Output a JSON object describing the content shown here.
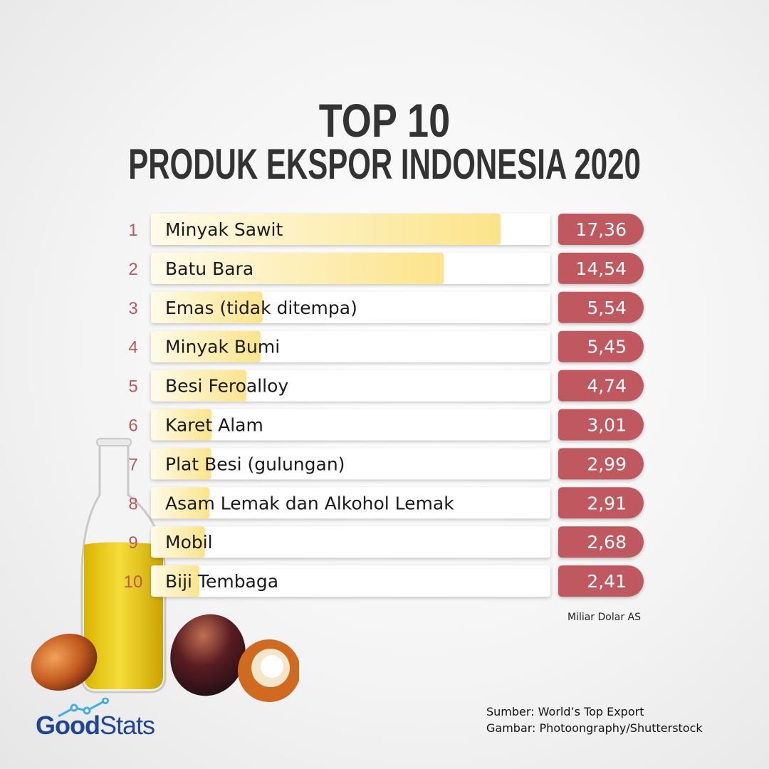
{
  "header": {
    "title_line1": "TOP 10",
    "title_line2": "PRODUK EKSPOR INDONESIA 2020"
  },
  "chart_data": {
    "type": "bar",
    "orientation": "horizontal",
    "title": "TOP 10 PRODUK EKSPOR INDONESIA 2020",
    "unit": "Miliar Dolar AS",
    "ranks": [
      "1",
      "2",
      "3",
      "4",
      "5",
      "6",
      "7",
      "8",
      "9",
      "10"
    ],
    "categories": [
      "Minyak Sawit",
      "Batu Bara",
      "Emas (tidak ditempa)",
      "Minyak Bumi",
      "Besi Feroalloy",
      "Karet Alam",
      "Plat Besi (gulungan)",
      "Asam Lemak dan Alkohol Lemak",
      "Mobil",
      "Biji Tembaga"
    ],
    "values": [
      17.36,
      14.54,
      5.54,
      5.45,
      4.74,
      3.01,
      2.99,
      2.91,
      2.68,
      2.41
    ],
    "value_labels": [
      "17,36",
      "14,54",
      "5,54",
      "5,45",
      "4,74",
      "3,01",
      "2,99",
      "2,91",
      "2,68",
      "2,41"
    ],
    "colors": {
      "rank": "#b9585c",
      "value_badge": "#c0595f",
      "bar_fill_start": "#fffbe8",
      "bar_fill_end": "#fbe48a",
      "row_background": "#ffffff"
    }
  },
  "footer": {
    "unit_label": "Miliar Dolar AS",
    "source_line": "Sumber: World’s Top Export",
    "image_credit_line": "Gambar: Photoongraphy/Shutterstock",
    "logo_part1": "Good",
    "logo_part2": "Stats"
  }
}
